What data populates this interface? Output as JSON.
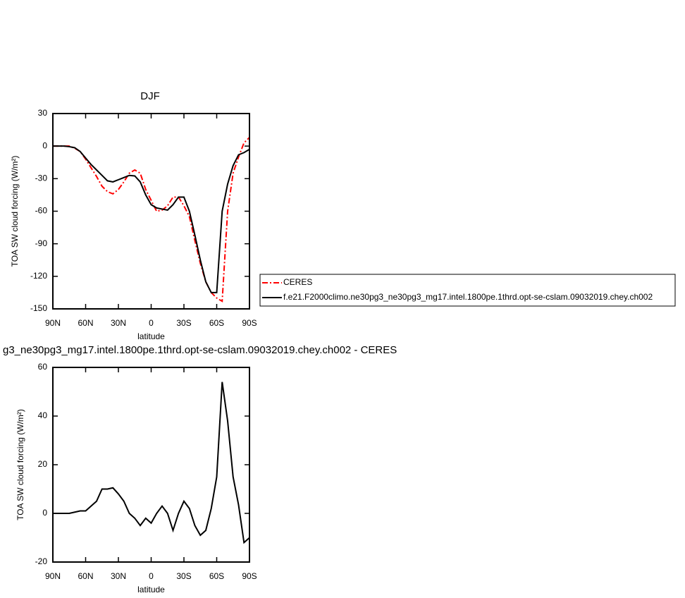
{
  "chart_data": [
    {
      "type": "line",
      "title": "DJF",
      "x_label": "latitude",
      "y_label": "TOA SW cloud forcing (W/m²)",
      "x": [
        90,
        85,
        80,
        75,
        70,
        65,
        60,
        55,
        50,
        45,
        40,
        35,
        30,
        25,
        20,
        15,
        10,
        5,
        0,
        -5,
        -10,
        -15,
        -20,
        -25,
        -30,
        -35,
        -40,
        -45,
        -50,
        -55,
        -60,
        -65,
        -70,
        -75,
        -80,
        -85,
        -90
      ],
      "xlim": [
        90,
        -90
      ],
      "xticks": [
        {
          "value": 90,
          "label": "90N"
        },
        {
          "value": 60,
          "label": "60N"
        },
        {
          "value": 30,
          "label": "30N"
        },
        0,
        {
          "value": -30,
          "label": "30S"
        },
        {
          "value": -60,
          "label": "60S"
        },
        {
          "value": -90,
          "label": "90S"
        }
      ],
      "ylim": [
        -150,
        30
      ],
      "yticks": [
        -150,
        -120,
        -90,
        -60,
        -30,
        0,
        30
      ],
      "legend": "right",
      "series": [
        {
          "name": "CERES",
          "color": "#ff0000",
          "style": "dashed",
          "values": [
            0,
            0,
            0,
            0,
            -2,
            -5,
            -12,
            -20,
            -28,
            -37,
            -42,
            -44,
            -40,
            -33,
            -25,
            -22,
            -25,
            -40,
            -50,
            -60,
            -59,
            -55,
            -47,
            -47,
            -55,
            -65,
            -87,
            -108,
            -125,
            -135,
            -140,
            -143,
            -60,
            -25,
            -10,
            3,
            8
          ]
        },
        {
          "name": "f.e21.F2000climo.ne30pg3_ne30pg3_mg17.intel.1800pe.1thrd.opt-se-cslam.09032019.chey.ch002",
          "color": "#000000",
          "style": "solid",
          "values": [
            0,
            0,
            0,
            -0.5,
            -1.5,
            -5,
            -11,
            -17,
            -22,
            -27,
            -32,
            -33,
            -31,
            -29,
            -27,
            -27.5,
            -33,
            -45,
            -54,
            -57,
            -58,
            -59,
            -54,
            -47,
            -47,
            -60,
            -82,
            -105,
            -125,
            -135,
            -135,
            -60,
            -35,
            -18,
            -8,
            -6,
            -3
          ]
        }
      ]
    },
    {
      "type": "line",
      "title": "g3_ne30pg3_mg17.intel.1800pe.1thrd.opt-se-cslam.09032019.chey.ch002 - CERES",
      "x_label": "latitude",
      "y_label": "TOA SW cloud forcing (W/m²)",
      "x": [
        90,
        85,
        80,
        75,
        70,
        65,
        60,
        55,
        50,
        45,
        40,
        35,
        30,
        25,
        20,
        15,
        10,
        5,
        0,
        -5,
        -10,
        -15,
        -20,
        -25,
        -30,
        -35,
        -40,
        -45,
        -50,
        -55,
        -60,
        -65,
        -70,
        -75,
        -80,
        -85,
        -90
      ],
      "xlim": [
        90,
        -90
      ],
      "xticks": [
        {
          "value": 90,
          "label": "90N"
        },
        {
          "value": 60,
          "label": "60N"
        },
        {
          "value": 30,
          "label": "30N"
        },
        0,
        {
          "value": -30,
          "label": "30S"
        },
        {
          "value": -60,
          "label": "60S"
        },
        {
          "value": -90,
          "label": "90S"
        }
      ],
      "ylim": [
        -20,
        60
      ],
      "yticks": [
        -20,
        0,
        20,
        40,
        60
      ],
      "series": [
        {
          "color": "#000000",
          "style": "solid",
          "values": [
            0,
            0,
            0,
            0,
            0.5,
            1,
            1,
            3,
            5,
            10,
            10,
            10.5,
            8,
            5,
            0,
            -2,
            -5,
            -2,
            -4,
            0,
            3,
            0,
            -7,
            0,
            5,
            2,
            -5,
            -9,
            -7,
            2,
            15,
            54,
            38,
            15,
            3.5,
            -12,
            -10
          ]
        }
      ]
    }
  ]
}
